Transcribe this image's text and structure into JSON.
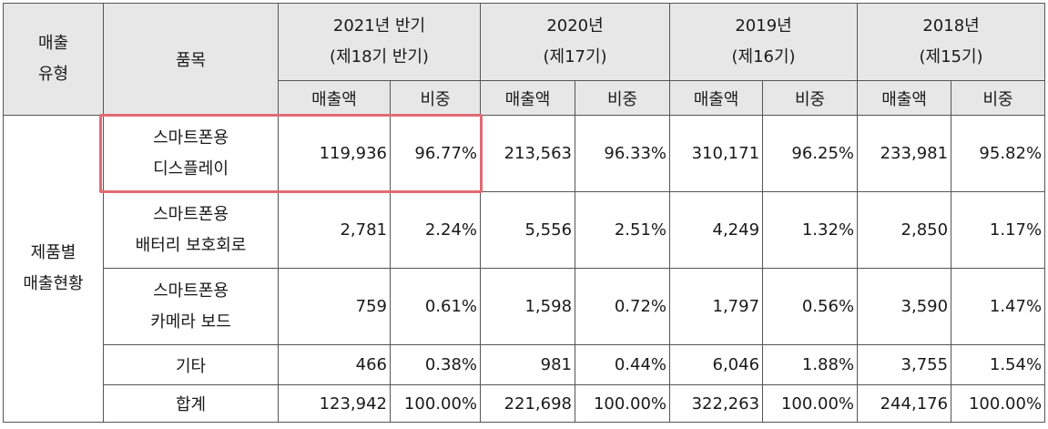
{
  "header": {
    "sales_type": "매출\n유형",
    "item": "품목",
    "periods": [
      {
        "year": "2021년 반기",
        "term": "(제18기 반기)"
      },
      {
        "year": "2020년",
        "term": "(제17기)"
      },
      {
        "year": "2019년",
        "term": "(제16기)"
      },
      {
        "year": "2018년",
        "term": "(제15기)"
      }
    ],
    "sub_sales": "매출액",
    "sub_ratio": "비중"
  },
  "group_label": "제품별\n매출현황",
  "rows": [
    {
      "item": "스마트폰용\n디스플레이",
      "cells": [
        "119,936",
        "96.77%",
        "213,563",
        "96.33%",
        "310,171",
        "96.25%",
        "233,981",
        "95.82%"
      ]
    },
    {
      "item": "스마트폰용\n배터리 보호회로",
      "cells": [
        "2,781",
        "2.24%",
        "5,556",
        "2.51%",
        "4,249",
        "1.32%",
        "2,850",
        "1.17%"
      ]
    },
    {
      "item": "스마트폰용\n카메라 보드",
      "cells": [
        "759",
        "0.61%",
        "1,598",
        "0.72%",
        "1,797",
        "0.56%",
        "3,590",
        "1.47%"
      ]
    },
    {
      "item": "기타",
      "cells": [
        "466",
        "0.38%",
        "981",
        "0.44%",
        "6,046",
        "1.88%",
        "3,755",
        "1.54%"
      ]
    },
    {
      "item": "합계",
      "cells": [
        "123,942",
        "100.00%",
        "221,698",
        "100.00%",
        "322,263",
        "100.00%",
        "244,176",
        "100.00%"
      ]
    }
  ]
}
